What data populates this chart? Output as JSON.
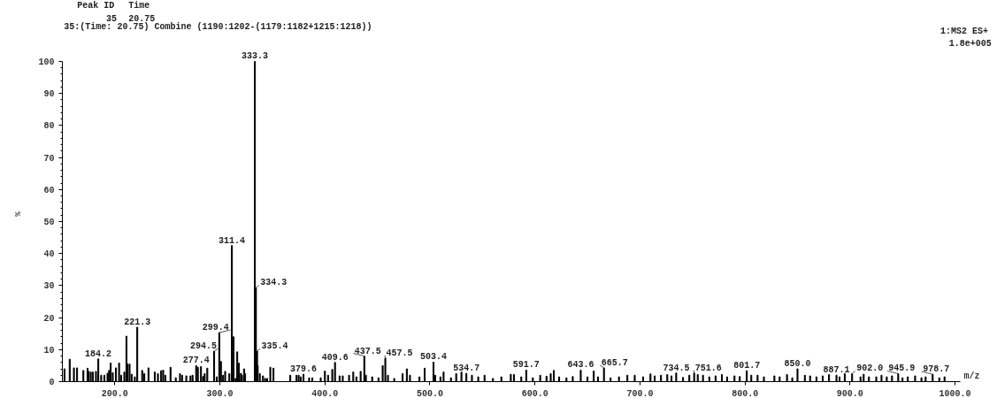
{
  "chart_data": {
    "type": "bar",
    "xlabel": "m/z",
    "ylabel": "%",
    "color": "#000000",
    "xlim": [
      150,
      1005
    ],
    "ylim": [
      0,
      100
    ],
    "xticks": [
      {
        "value": 200,
        "label": "200.0"
      },
      {
        "value": 300,
        "label": "300.0"
      },
      {
        "value": 400,
        "label": "400.0"
      },
      {
        "value": 500,
        "label": "500.0"
      },
      {
        "value": 600,
        "label": "600.0"
      },
      {
        "value": 700,
        "label": "700.0"
      },
      {
        "value": 800,
        "label": "800.0"
      },
      {
        "value": 900,
        "label": "900.0"
      },
      {
        "value": 1000,
        "label": "1000.0"
      }
    ],
    "yticks": [
      0,
      10,
      20,
      30,
      40,
      50,
      60,
      70,
      80,
      90,
      100
    ],
    "grid": false,
    "x": [
      152,
      157,
      161,
      164,
      170,
      174,
      175,
      177,
      179,
      182,
      184.2,
      187,
      190,
      193,
      194.5,
      196,
      198,
      201,
      204,
      206,
      209,
      211,
      212,
      214,
      216,
      219,
      221.3,
      226,
      228,
      232,
      238,
      241,
      244,
      246,
      248,
      253,
      258,
      262,
      264,
      268,
      272,
      274,
      277.4,
      279,
      282,
      284,
      285.5,
      288,
      294.5,
      297,
      299.4,
      301,
      303,
      305,
      309,
      311.4,
      313,
      315,
      316.5,
      318,
      320,
      321,
      323,
      324,
      333.3,
      334.3,
      335.4,
      336,
      338,
      341,
      343,
      345,
      348,
      351,
      367,
      373,
      375,
      377,
      379.6,
      385,
      388,
      396,
      400,
      403,
      407,
      409.6,
      414,
      417,
      423,
      427,
      430,
      434,
      437.5,
      439,
      445,
      451,
      455,
      457.5,
      460,
      466,
      474,
      478,
      481,
      490,
      495,
      503.4,
      505,
      510,
      513,
      520,
      525,
      530,
      534.7,
      540,
      546,
      552,
      560,
      568,
      577,
      580,
      587,
      591.7,
      598,
      605,
      611,
      615,
      618,
      623,
      630,
      636,
      643.6,
      650,
      656,
      660,
      665.7,
      672,
      680,
      688,
      695,
      703,
      710,
      714,
      720,
      726,
      730,
      734.5,
      741,
      747,
      751.6,
      755,
      760,
      766,
      772,
      778,
      783,
      790,
      795,
      801.7,
      806,
      812,
      818,
      828,
      833,
      840,
      845,
      850,
      857,
      862,
      868,
      874,
      880,
      887.1,
      890,
      895,
      902,
      910,
      913,
      918,
      925,
      930,
      935,
      940,
      945.9,
      950,
      955,
      962,
      968,
      972,
      978.7,
      985,
      990
    ],
    "values": [
      4,
      7,
      4.3,
      4.3,
      3.5,
      4.2,
      3.2,
      3,
      3,
      3.2,
      7.1,
      2,
      2,
      2.6,
      3.5,
      5.8,
      2.8,
      4.3,
      5.8,
      2,
      3,
      14.2,
      5.5,
      5.5,
      2.3,
      1.5,
      17,
      3.5,
      2.5,
      4.3,
      3,
      2.5,
      3.4,
      3.6,
      2,
      4.5,
      1.2,
      2.5,
      2,
      1.8,
      1.8,
      2,
      5,
      4.5,
      4.7,
      1.6,
      2.5,
      4.2,
      9.5,
      1.5,
      15.3,
      6.3,
      2,
      3.2,
      2.5,
      42.5,
      14,
      1,
      9.3,
      5.8,
      2.6,
      2,
      4,
      2.5,
      100,
      29.3,
      9.5,
      5,
      2.5,
      1.8,
      1,
      1,
      4.5,
      4.2,
      2,
      2,
      2,
      1.5,
      2.3,
      1.2,
      1.2,
      1.2,
      3.3,
      2,
      3.8,
      6,
      1.8,
      1.8,
      2,
      3,
      1.5,
      3.2,
      8,
      2,
      1.5,
      1.2,
      5,
      7.4,
      2,
      1,
      2.5,
      4,
      2,
      1.5,
      4.2,
      6.1,
      2,
      1.5,
      3,
      1.2,
      2.5,
      3,
      2.6,
      2,
      1.5,
      2,
      1,
      1.5,
      2.3,
      2.2,
      1.5,
      3.6,
      1.2,
      2,
      1.7,
      2.5,
      3.5,
      1.5,
      1.2,
      1.6,
      3.6,
      1.5,
      3.3,
      1.5,
      4.3,
      1.2,
      1.5,
      2,
      2,
      1.5,
      2.4,
      1.8,
      2,
      2.2,
      1.8,
      2.7,
      1.3,
      2,
      2.7,
      2.2,
      2,
      1.5,
      1.8,
      2.2,
      1.5,
      1.8,
      1.6,
      3.4,
      2,
      2,
      1.5,
      1.8,
      1.5,
      2.2,
      1.2,
      4,
      2,
      1.8,
      1.5,
      1.8,
      2.2,
      2,
      1.5,
      2.5,
      2.5,
      1.5,
      2.3,
      1.5,
      1.5,
      2,
      1.5,
      1.8,
      2.5,
      1.2,
      1.5,
      1.8,
      1.2,
      1.5,
      2.3,
      1.2,
      1.5
    ],
    "annotations": [
      "Peak ID",
      "Time",
      "35",
      "20.75",
      "35:(Time: 20.75) Combine (1190:1202-(1179:1182+1215:1218))",
      "1:MS2 ES+",
      "1.8e+005",
      {
        "text": "184.2",
        "x": 184.2,
        "y": 7.1
      },
      {
        "text": "221.3",
        "x": 221.3,
        "y": 17
      },
      {
        "text": "277.4",
        "x": 277.4,
        "y": 5
      },
      {
        "text": "294.5",
        "x": 294.5,
        "y": 9.5
      },
      {
        "text": "299.4",
        "x": 299.4,
        "y": 15.3
      },
      {
        "text": "311.4",
        "x": 311.4,
        "y": 42.5
      },
      {
        "text": "333.3",
        "x": 333.3,
        "y": 100
      },
      {
        "text": "334.3",
        "x": 334.3,
        "y": 29.3
      },
      {
        "text": "335.4",
        "x": 335.4,
        "y": 9.5
      },
      {
        "text": "379.6",
        "x": 379.6,
        "y": 2.3
      },
      {
        "text": "409.6",
        "x": 409.6,
        "y": 6
      },
      {
        "text": "437.5",
        "x": 437.5,
        "y": 8
      },
      {
        "text": "457.5",
        "x": 457.5,
        "y": 7.4
      },
      {
        "text": "503.4",
        "x": 503.4,
        "y": 6.1
      },
      {
        "text": "534.7",
        "x": 534.7,
        "y": 2.6
      },
      {
        "text": "591.7",
        "x": 591.7,
        "y": 3.6
      },
      {
        "text": "643.6",
        "x": 643.6,
        "y": 3.6
      },
      {
        "text": "665.7",
        "x": 665.7,
        "y": 4.3
      },
      {
        "text": "734.5",
        "x": 734.5,
        "y": 2.7
      },
      {
        "text": "751.6",
        "x": 751.6,
        "y": 2.7
      },
      {
        "text": "801.7",
        "x": 801.7,
        "y": 3.4
      },
      {
        "text": "850.0",
        "x": 850,
        "y": 4
      },
      {
        "text": "887.1",
        "x": 887.1,
        "y": 2
      },
      {
        "text": "902.0",
        "x": 902,
        "y": 2.5
      },
      {
        "text": "945.9",
        "x": 945.9,
        "y": 2.5
      },
      {
        "text": "978.7",
        "x": 978.7,
        "y": 2.3
      }
    ]
  }
}
